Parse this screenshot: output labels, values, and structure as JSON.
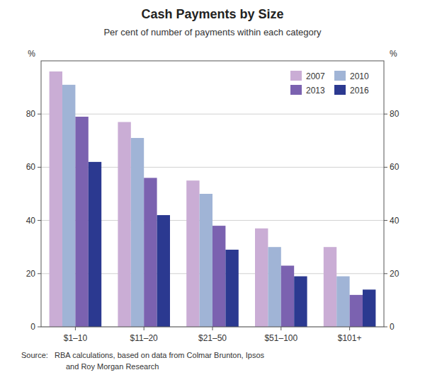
{
  "chart_data": {
    "type": "bar",
    "title": "Cash Payments by Size",
    "subtitle": "Per cent of number of payments within each category",
    "ylabel": "%",
    "annotations": [
      "Source:   RBA calculations, based on data from Colmar Brunton, Ipsos",
      "and Roy Morgan Research"
    ],
    "categories": [
      "$1–10",
      "$11–20",
      "$21–50",
      "$51–100",
      "$101+"
    ],
    "series": [
      {
        "name": "2007",
        "color": "#caadd5",
        "values": [
          96,
          77,
          55,
          37,
          30
        ]
      },
      {
        "name": "2010",
        "color": "#a0b4d6",
        "values": [
          91,
          71,
          50,
          30,
          19
        ]
      },
      {
        "name": "2013",
        "color": "#7b62b0",
        "values": [
          79,
          56,
          38,
          23,
          12
        ]
      },
      {
        "name": "2016",
        "color": "#2b3990",
        "values": [
          62,
          42,
          29,
          19,
          14
        ]
      }
    ],
    "ylim": [
      0,
      100
    ],
    "yticks": [
      0,
      20,
      40,
      60,
      80
    ],
    "grid": true,
    "legend": "upper-right"
  }
}
